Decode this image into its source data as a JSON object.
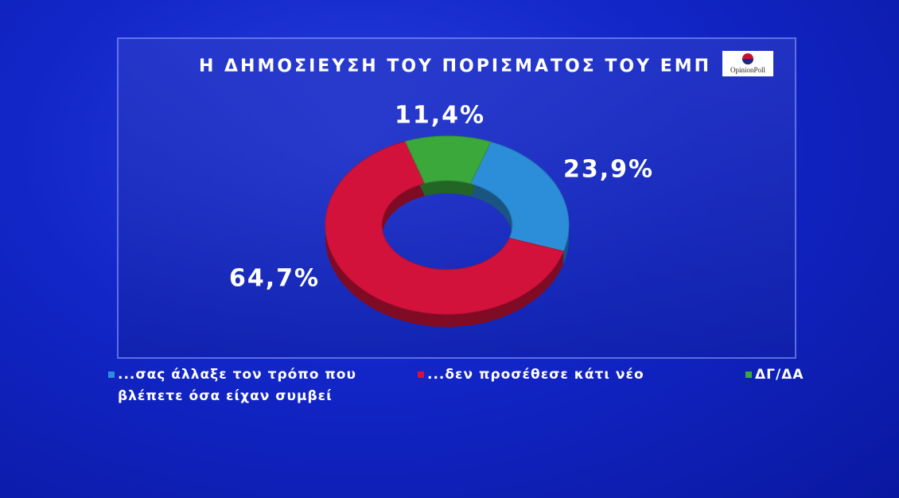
{
  "chart_data": {
    "type": "donut",
    "title": "Η ΔΗΜΟΣΙΕΥΣΗ ΤΟΥ ΠΟΡΙΣΜΑΤΟΣ ΤΟΥ ΕΜΠ",
    "logo": "OpinionPoll",
    "categories": [
      "...σας άλλαξε τον τρόπο που βλέπετε όσα είχαν συμβεί",
      "...δεν προσέθεσε κάτι νέο",
      "ΔΓ/ΔΑ"
    ],
    "values": [
      23.9,
      64.7,
      11.4
    ],
    "value_labels": [
      "23,9%",
      "64,7%",
      "11,4%"
    ],
    "colors": [
      "#2c8ed8",
      "#d3123c",
      "#3ba83c"
    ]
  }
}
